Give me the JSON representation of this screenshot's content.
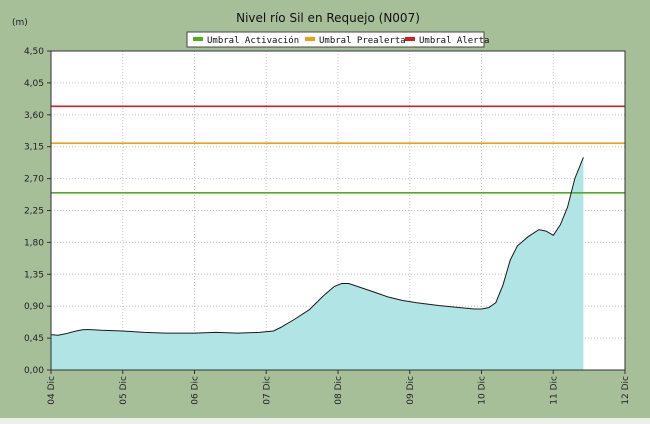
{
  "chart_data": {
    "type": "area",
    "title": "Nivel río Sil en Requejo  (N007)",
    "ylabel": "(m)",
    "xlabel": "",
    "ylim": [
      0,
      4.5
    ],
    "yticks": [
      "0,00",
      "0,45",
      "0,90",
      "1,35",
      "1,80",
      "2,25",
      "2,70",
      "3,15",
      "3,60",
      "4,05",
      "4,50"
    ],
    "xlim": [
      4,
      12
    ],
    "xticks": [
      {
        "v": 4,
        "label": "04 Dic"
      },
      {
        "v": 5,
        "label": "05 Dic"
      },
      {
        "v": 6,
        "label": "06 Dic"
      },
      {
        "v": 7,
        "label": "07 Dic"
      },
      {
        "v": 8,
        "label": "08 Dic"
      },
      {
        "v": 9,
        "label": "09 Dic"
      },
      {
        "v": 10,
        "label": "10 Dic"
      },
      {
        "v": 11,
        "label": "11 Dic"
      },
      {
        "v": 12,
        "label": "12 Dic"
      }
    ],
    "grid": true,
    "legend_position": "top",
    "colors": {
      "area_fill": "#b1e4e4",
      "area_line": "#1a1a1a",
      "plot_bg": "#ffffff",
      "frame_bg": "#a6bf98"
    },
    "thresholds": [
      {
        "name": "Umbral Activación",
        "value": 2.5,
        "color": "#4caf1c"
      },
      {
        "name": "Umbral Prealerta",
        "value": 3.2,
        "color": "#f39c12"
      },
      {
        "name": "Umbral Alerta",
        "value": 3.72,
        "color": "#d42020"
      }
    ],
    "series": [
      {
        "x": [
          4.0,
          4.1,
          4.2,
          4.35,
          4.45,
          4.55,
          4.7,
          5.0,
          5.3,
          5.6,
          6.0,
          6.3,
          6.6,
          6.9,
          7.1,
          7.2,
          7.4,
          7.6,
          7.8,
          7.95,
          8.05,
          8.15,
          8.3,
          8.5,
          8.7,
          8.9,
          9.1,
          9.4,
          9.7,
          9.9,
          10.0,
          10.1,
          10.2,
          10.3,
          10.4,
          10.5,
          10.65,
          10.8,
          10.9,
          11.0,
          11.1,
          11.2,
          11.3,
          11.42
        ],
        "y": [
          0.5,
          0.49,
          0.51,
          0.55,
          0.57,
          0.57,
          0.56,
          0.55,
          0.53,
          0.52,
          0.52,
          0.53,
          0.52,
          0.53,
          0.55,
          0.6,
          0.72,
          0.85,
          1.05,
          1.18,
          1.22,
          1.22,
          1.17,
          1.1,
          1.03,
          0.98,
          0.95,
          0.91,
          0.88,
          0.86,
          0.86,
          0.88,
          0.95,
          1.2,
          1.55,
          1.75,
          1.88,
          1.98,
          1.96,
          1.9,
          2.05,
          2.3,
          2.7,
          3.0
        ]
      }
    ]
  }
}
